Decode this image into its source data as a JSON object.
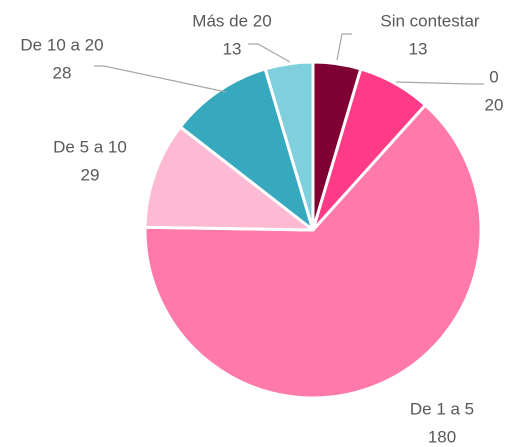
{
  "chart_data": {
    "type": "pie",
    "categories": [
      "Sin contestar",
      "0",
      "De 1 a 5",
      "De 5 a 10",
      "De 10 a 20",
      "Más de 20"
    ],
    "values": [
      13,
      20,
      180,
      29,
      28,
      13
    ],
    "colors": [
      "#7f0033",
      "#ff3b87",
      "#ff7aaa",
      "#ffbad3",
      "#36a9bf",
      "#7fcfdd"
    ]
  }
}
